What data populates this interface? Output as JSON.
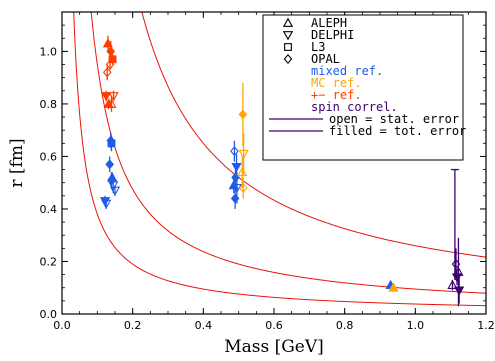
{
  "chart_data": {
    "type": "scatter",
    "xlabel": "Mass [GeV]",
    "ylabel": "r [fm]",
    "xlim": [
      0.0,
      1.2
    ],
    "ylim": [
      0.0,
      1.15
    ],
    "x_ticks": [
      "0.0",
      "0.2",
      "0.4",
      "0.6",
      "0.8",
      "1.0",
      "1.2"
    ],
    "y_ticks": [
      "0.0",
      "0.2",
      "0.4",
      "0.6",
      "0.8",
      "1.0"
    ],
    "grid": false,
    "legend_position": "top-right",
    "legend": {
      "experiments": [
        {
          "label": "ALEPH",
          "marker": "triangle-up"
        },
        {
          "label": "DELPHI",
          "marker": "triangle-down"
        },
        {
          "label": "L3",
          "marker": "square"
        },
        {
          "label": "OPAL",
          "marker": "diamond"
        }
      ],
      "reference_methods": [
        {
          "label": "mixed ref.",
          "color": "#1f5be8"
        },
        {
          "label": "MC ref.",
          "color": "#ffa500"
        },
        {
          "label": "+− ref.",
          "color": "#ff3b00"
        },
        {
          "label": "spin correl.",
          "color": "#3d0070"
        }
      ],
      "error_types": [
        {
          "label": "open = stat. error",
          "color": "#3d0070"
        },
        {
          "label": "filled = tot. error",
          "color": "#3d0070"
        }
      ]
    },
    "colors": {
      "mixed": "#1f5be8",
      "mc": "#ffa500",
      "pm": "#ff3b00",
      "spin": "#3d0070",
      "curve": "#e8140a"
    },
    "curves": [
      {
        "name": "",
        "k": 0.038
      },
      {
        "name": "",
        "k": 0.095
      },
      {
        "name": "",
        "k": 0.26
      }
    ],
    "points": [
      {
        "x": 0.13,
        "y": 1.03,
        "err": 0.03,
        "marker": "triangle-up",
        "color": "pm",
        "filled": true
      },
      {
        "x": 0.138,
        "y": 1.0,
        "err": 0.04,
        "marker": "diamond",
        "color": "pm",
        "filled": true
      },
      {
        "x": 0.143,
        "y": 0.97,
        "err": 0.02,
        "marker": "square",
        "color": "pm",
        "filled": true
      },
      {
        "x": 0.136,
        "y": 0.95,
        "err": 0.02,
        "marker": "diamond",
        "color": "pm",
        "filled": false
      },
      {
        "x": 0.128,
        "y": 0.92,
        "err": 0.03,
        "marker": "diamond",
        "color": "pm",
        "filled": false
      },
      {
        "x": 0.125,
        "y": 0.83,
        "err": 0.02,
        "marker": "triangle-down",
        "color": "pm",
        "filled": true
      },
      {
        "x": 0.132,
        "y": 0.8,
        "err": 0.02,
        "marker": "triangle-up",
        "color": "pm",
        "filled": true
      },
      {
        "x": 0.14,
        "y": 0.8,
        "err": 0.03,
        "marker": "triangle-up",
        "color": "pm",
        "filled": false
      },
      {
        "x": 0.146,
        "y": 0.83,
        "err": 0.02,
        "marker": "triangle-down",
        "color": "pm",
        "filled": false
      },
      {
        "x": 0.138,
        "y": 0.66,
        "err": 0.03,
        "marker": "diamond",
        "color": "mixed",
        "filled": true
      },
      {
        "x": 0.14,
        "y": 0.65,
        "err": 0.03,
        "marker": "square",
        "color": "mixed",
        "filled": true
      },
      {
        "x": 0.135,
        "y": 0.57,
        "err": 0.03,
        "marker": "diamond",
        "color": "mixed",
        "filled": true
      },
      {
        "x": 0.14,
        "y": 0.51,
        "err": 0.03,
        "marker": "diamond",
        "color": "mixed",
        "filled": false
      },
      {
        "x": 0.145,
        "y": 0.49,
        "err": 0.03,
        "marker": "triangle-down",
        "color": "mixed",
        "filled": false
      },
      {
        "x": 0.15,
        "y": 0.47,
        "err": 0.02,
        "marker": "triangle-down",
        "color": "mixed",
        "filled": false
      },
      {
        "x": 0.142,
        "y": 0.52,
        "err": 0.02,
        "marker": "triangle-up",
        "color": "mixed",
        "filled": true
      },
      {
        "x": 0.122,
        "y": 0.43,
        "err": 0.02,
        "marker": "triangle-down",
        "color": "mixed",
        "filled": true
      },
      {
        "x": 0.125,
        "y": 0.42,
        "err": 0.02,
        "marker": "triangle-down",
        "color": "mixed",
        "filled": false
      },
      {
        "x": 0.488,
        "y": 0.62,
        "err": 0.04,
        "marker": "diamond",
        "color": "mixed",
        "filled": false
      },
      {
        "x": 0.494,
        "y": 0.56,
        "err": 0.05,
        "marker": "triangle-down",
        "color": "mixed",
        "filled": true
      },
      {
        "x": 0.491,
        "y": 0.52,
        "err": 0.04,
        "marker": "diamond",
        "color": "mixed",
        "filled": true
      },
      {
        "x": 0.486,
        "y": 0.49,
        "err": 0.03,
        "marker": "triangle-up",
        "color": "mixed",
        "filled": true
      },
      {
        "x": 0.495,
        "y": 0.48,
        "err": 0.06,
        "marker": "triangle-down",
        "color": "mixed",
        "filled": false
      },
      {
        "x": 0.49,
        "y": 0.44,
        "err": 0.04,
        "marker": "diamond",
        "color": "mixed",
        "filled": true
      },
      {
        "x": 0.512,
        "y": 0.76,
        "err": 0.12,
        "marker": "diamond",
        "color": "mc",
        "filled": true
      },
      {
        "x": 0.514,
        "y": 0.61,
        "err": 0.08,
        "marker": "triangle-down",
        "color": "mc",
        "filled": false
      },
      {
        "x": 0.51,
        "y": 0.54,
        "err": 0.06,
        "marker": "triangle-up",
        "color": "mc",
        "filled": false
      },
      {
        "x": 0.513,
        "y": 0.48,
        "err": 0.04,
        "marker": "diamond",
        "color": "mc",
        "filled": false
      },
      {
        "x": 0.93,
        "y": 0.11,
        "err": 0.01,
        "marker": "triangle-up",
        "color": "mixed",
        "filled": true
      },
      {
        "x": 0.938,
        "y": 0.1,
        "err": 0.01,
        "marker": "triangle-up",
        "color": "mc",
        "filled": true
      },
      {
        "x": 1.105,
        "y": 0.11,
        "err": 0.02,
        "marker": "triangle-up",
        "color": "spin",
        "filled": false
      },
      {
        "x": 1.112,
        "y": 0.34,
        "err": 0.21,
        "marker": "none",
        "color": "spin",
        "filled": true
      },
      {
        "x": 1.115,
        "y": 0.19,
        "err": 0.06,
        "marker": "diamond",
        "color": "spin",
        "filled": false
      },
      {
        "x": 1.118,
        "y": 0.14,
        "err": 0.03,
        "marker": "triangle-down",
        "color": "spin",
        "filled": true
      },
      {
        "x": 1.122,
        "y": 0.16,
        "err": 0.13,
        "marker": "triangle-up",
        "color": "spin",
        "filled": false
      },
      {
        "x": 1.124,
        "y": 0.09,
        "err": 0.05,
        "marker": "triangle-down",
        "color": "spin",
        "filled": true
      }
    ]
  }
}
